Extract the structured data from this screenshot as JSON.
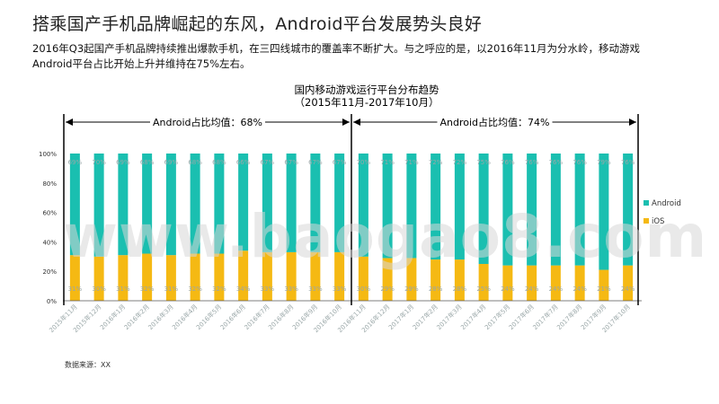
{
  "slide": {
    "title": "搭乘国产手机品牌崛起的东风，Android平台发展势头良好",
    "description_line1": "2016年Q3起国产手机品牌持续推出爆款手机，在三四线城市的覆盖率不断扩大。与之呼应的是，以2016年11月为分水岭，移动游戏",
    "description_line2": "Android平台占比开始上升并维持在75%左右。",
    "source": "数据来源：XX",
    "watermark": "www.baogao8.com"
  },
  "colors": {
    "android": "#1ABFB0",
    "ios": "#F5B913",
    "label": "#9AA7A8",
    "axis": "#000000"
  },
  "chart_data": {
    "type": "bar",
    "stacked": true,
    "percent": true,
    "title": "国内移动游戏运行平台分布趋势",
    "subtitle": "（2015年11月-2017年10月）",
    "categories": [
      "2015年11月",
      "2015年12月",
      "2016年1月",
      "2016年2月",
      "2016年3月",
      "2016年4月",
      "2016年5月",
      "2016年6月",
      "2016年7月",
      "2016年8月",
      "2016年9月",
      "2016年10月",
      "2016年11月",
      "2016年12月",
      "2017年1月",
      "2017年2月",
      "2017年3月",
      "2017年4月",
      "2017年5月",
      "2017年6月",
      "2017年7月",
      "2017年8月",
      "2017年9月",
      "2017年10月"
    ],
    "series": [
      {
        "name": "iOS",
        "values": [
          31,
          30,
          31,
          32,
          31,
          32,
          32,
          34,
          33,
          33,
          33,
          33,
          30,
          29,
          29,
          28,
          28,
          25,
          24,
          24,
          24,
          24,
          21,
          24
        ],
        "labels": [
          "31%",
          "30%",
          "31%",
          "32%",
          "31%",
          "32%",
          "32%",
          "34%",
          "33%",
          "33%",
          "33%",
          "33%",
          "30%",
          "29%",
          "29%",
          "28%",
          "28%",
          "25%",
          "24%",
          "24%",
          "24%",
          "24%",
          "21%",
          "24%"
        ]
      },
      {
        "name": "Android",
        "values": [
          69,
          70,
          69,
          68,
          69,
          68,
          68,
          66,
          67,
          67,
          67,
          67,
          70,
          71,
          71,
          72,
          72,
          75,
          76,
          76,
          76,
          76,
          79,
          76
        ],
        "labels": [
          "69%",
          "70%",
          "69%",
          "68%",
          "69%",
          "68%",
          "68%",
          "66%",
          "67%",
          "67%",
          "67%",
          "67%",
          "70%",
          "71%",
          "71%",
          "72%",
          "72%",
          "75%",
          "76%",
          "76%",
          "76%",
          "76%",
          "79%",
          "76%"
        ]
      }
    ],
    "yticks": [
      "0%",
      "20%",
      "40%",
      "60%",
      "80%",
      "100%"
    ],
    "ylim": [
      0,
      100
    ],
    "grid": false,
    "legend_position": "right",
    "period_annotations": [
      {
        "label": "Android占比均值：68%",
        "from_category": "2015年11月",
        "to_category": "2016年10月"
      },
      {
        "label": "Android占比均值：74%",
        "from_category": "2016年11月",
        "to_category": "2017年10月"
      }
    ]
  }
}
